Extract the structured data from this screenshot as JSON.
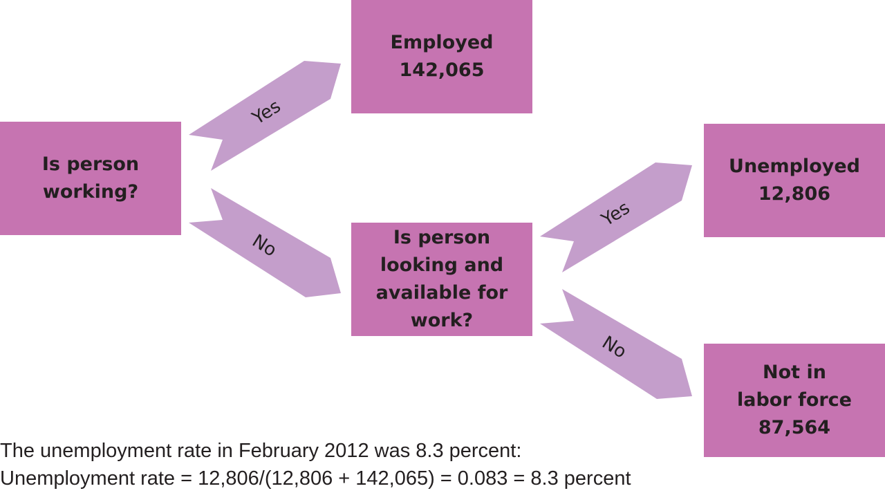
{
  "colors": {
    "box_fill": "#c674b1",
    "arrow_fill": "#c49ecb",
    "text": "#231f20"
  },
  "boxes": {
    "working": {
      "lines": [
        "Is person",
        "working?"
      ]
    },
    "employed": {
      "lines": [
        "Employed",
        "142,065"
      ]
    },
    "looking": {
      "lines": [
        "Is person",
        "looking and",
        "available for",
        "work?"
      ]
    },
    "unemployed": {
      "lines": [
        "Unemployed",
        "12,806"
      ]
    },
    "not_in_labor_force": {
      "lines": [
        "Not in",
        "labor force",
        "87,564"
      ]
    }
  },
  "arrows": {
    "working_yes": "Yes",
    "working_no": "No",
    "looking_yes": "Yes",
    "looking_no": "No"
  },
  "caption": {
    "line1": "The unemployment rate in February 2012 was 8.3 percent:",
    "line2": "Unemployment rate = 12,806/(12,806 + 142,065) = 0.083 = 8.3 percent"
  }
}
